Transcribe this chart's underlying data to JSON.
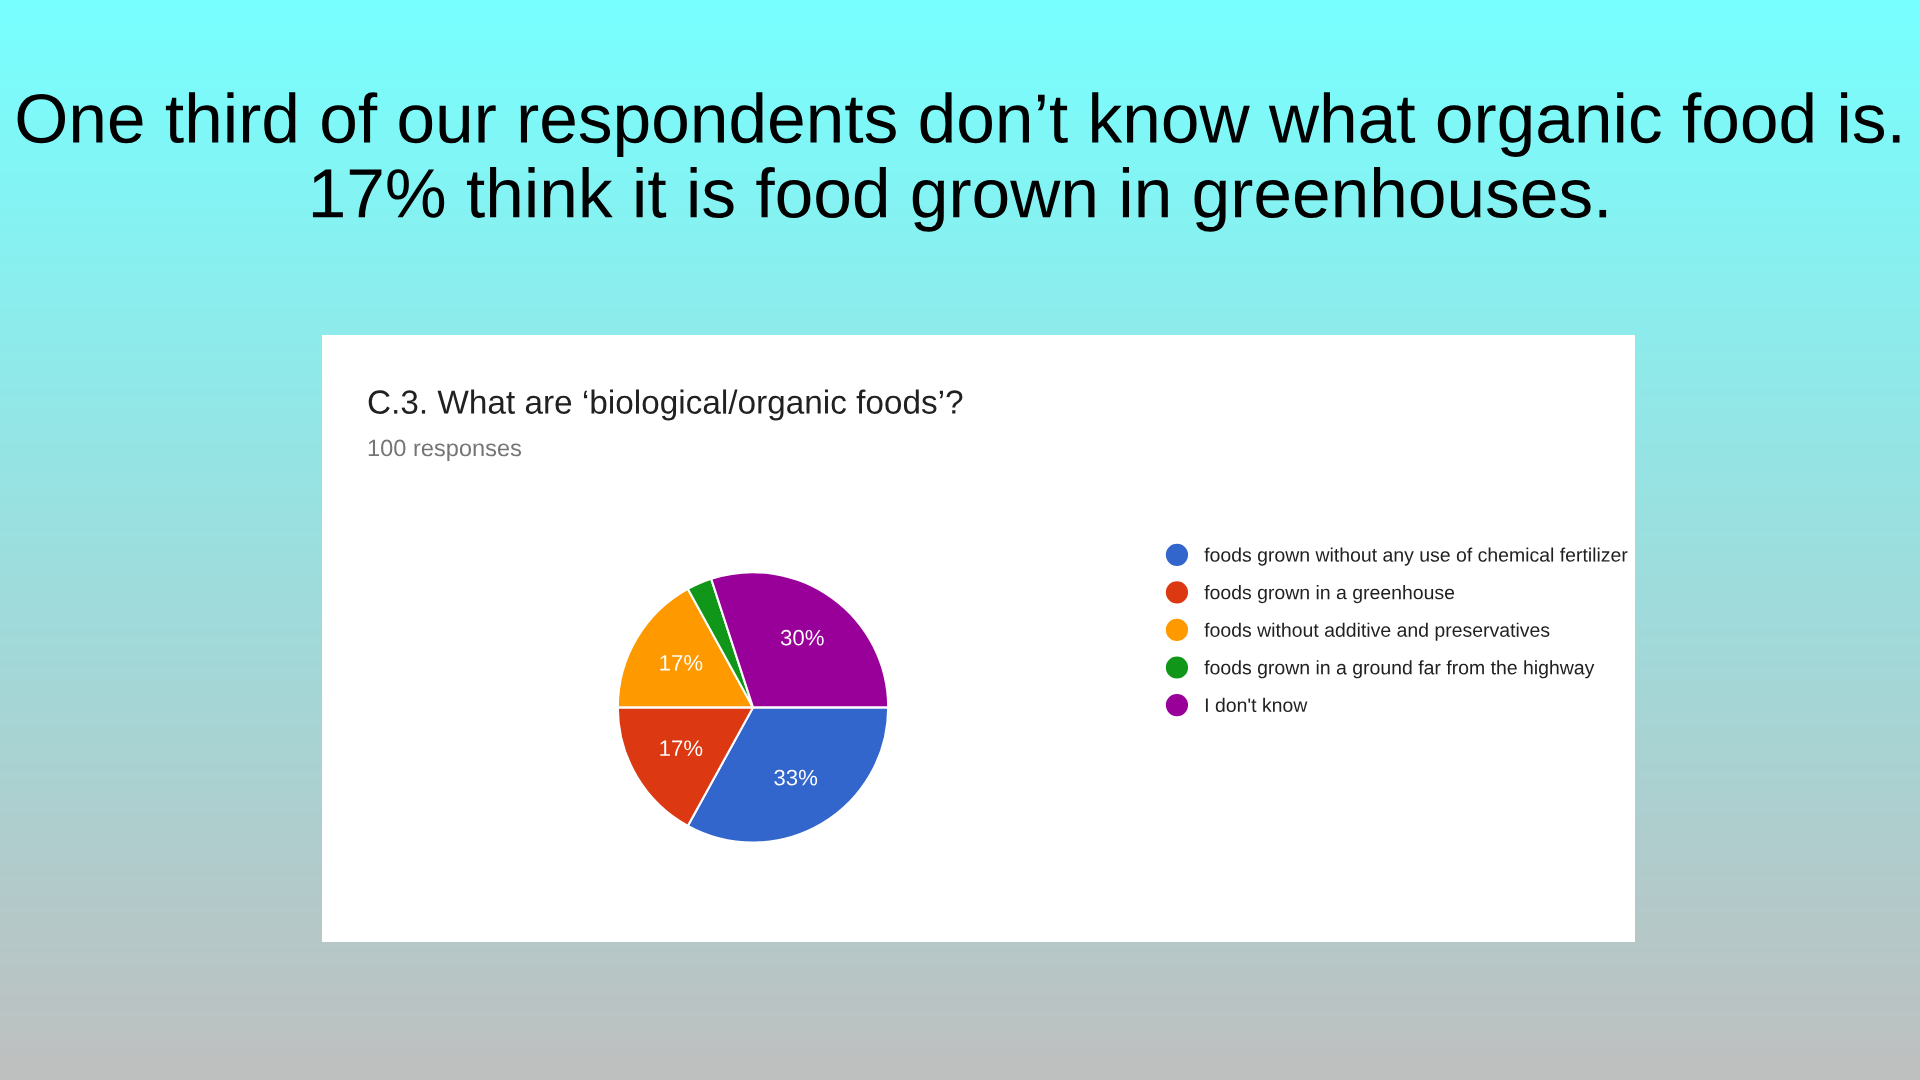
{
  "chart_data": {
    "type": "pie",
    "title": "C.3. What are ‘biological/organic foods’?",
    "subtitle": "100 responses",
    "annotations": [
      "One third of our respondents don’t know what organic food is. 17% think it is food grown in greenhouses."
    ],
    "categories": [
      "foods grown without any use of chemical fertilizer",
      "foods grown in a greenhouse",
      "foods without additive and preservatives",
      "foods grown in a ground far from the highway",
      "I don't know"
    ],
    "values": [
      33,
      17,
      17,
      3,
      30
    ],
    "value_labels": [
      "33%",
      "17%",
      "17%",
      null,
      "30%"
    ],
    "colors": [
      "#3366cc",
      "#dc3912",
      "#ff9900",
      "#109618",
      "#990099"
    ],
    "legend": "right"
  }
}
